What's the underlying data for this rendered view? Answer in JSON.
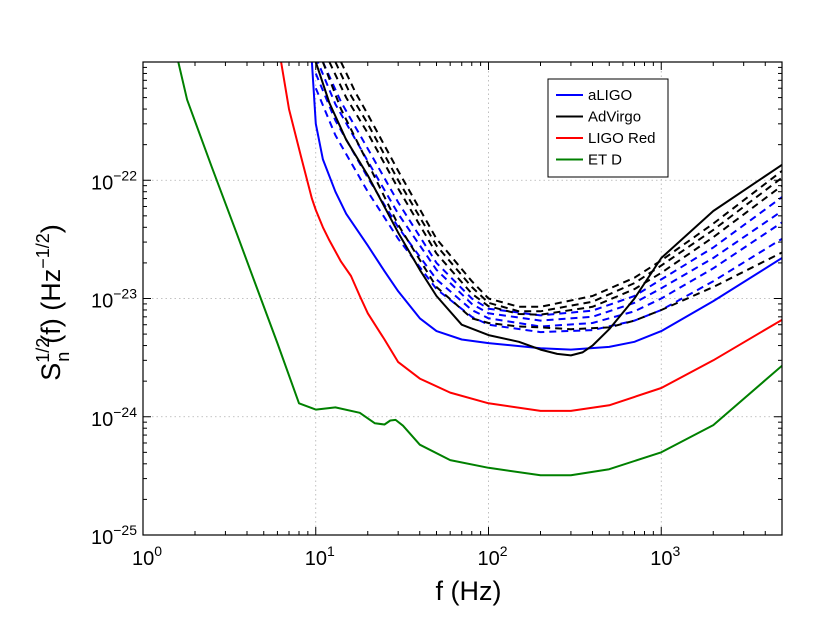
{
  "chart_data": {
    "type": "line",
    "xscale": "log",
    "yscale": "log",
    "xlim": [
      1,
      5000
    ],
    "ylim": [
      1e-25,
      1e-21
    ],
    "xlabel": "f (Hz)",
    "ylabel": "S_n^{1/2}(f) (Hz^{-1/2})",
    "ylabel_parts": {
      "base": "S",
      "sub": "n",
      "sup": "1/2",
      "mid": "(f) (Hz",
      "sup2": "−1/2",
      "end": ")"
    },
    "x_ticks": [
      {
        "base": "10",
        "exp": "0",
        "value": 1
      },
      {
        "base": "10",
        "exp": "1",
        "value": 10
      },
      {
        "base": "10",
        "exp": "2",
        "value": 100
      },
      {
        "base": "10",
        "exp": "3",
        "value": 1000
      }
    ],
    "y_ticks": [
      {
        "base": "10",
        "exp": "−25",
        "value": 1e-25
      },
      {
        "base": "10",
        "exp": "−24",
        "value": 1e-24
      },
      {
        "base": "10",
        "exp": "−23",
        "value": 1e-23
      },
      {
        "base": "10",
        "exp": "−22",
        "value": 1e-22
      }
    ],
    "grid": true,
    "legend_position": "top-right",
    "legend": [
      {
        "label": "aLIGO",
        "color": "#0000ff"
      },
      {
        "label": "AdVirgo",
        "color": "#000000"
      },
      {
        "label": "LIGO Red",
        "color": "#ff0000"
      },
      {
        "label": "ET D",
        "color": "#008000"
      }
    ],
    "series": [
      {
        "name": "ET D",
        "color": "#008000",
        "style": "solid",
        "points": [
          [
            1.6,
            1e-21
          ],
          [
            1.8,
            4.8e-22
          ],
          [
            2.5,
            1.3e-22
          ],
          [
            3.5,
            3.5e-23
          ],
          [
            4.5,
            1.3e-23
          ],
          [
            6,
            4.2e-24
          ],
          [
            8,
            1.3e-24
          ],
          [
            10,
            1.15e-24
          ],
          [
            13,
            1.2e-24
          ],
          [
            18,
            1.08e-24
          ],
          [
            22,
            8.8e-25
          ],
          [
            25,
            8.6e-25
          ],
          [
            27,
            9.3e-25
          ],
          [
            29,
            9.4e-25
          ],
          [
            32,
            8.4e-25
          ],
          [
            40,
            5.8e-25
          ],
          [
            60,
            4.3e-25
          ],
          [
            100,
            3.7e-25
          ],
          [
            200,
            3.2e-25
          ],
          [
            300,
            3.2e-25
          ],
          [
            500,
            3.6e-25
          ],
          [
            1000,
            5e-25
          ],
          [
            2000,
            8.5e-25
          ],
          [
            5000,
            2.7e-24
          ]
        ]
      },
      {
        "name": "LIGO Red",
        "color": "#ff0000",
        "style": "solid",
        "points": [
          [
            6.3,
            1e-21
          ],
          [
            7,
            4e-22
          ],
          [
            8.2,
            1.6e-22
          ],
          [
            9.5,
            7e-23
          ],
          [
            10,
            5.6e-23
          ],
          [
            11,
            4e-23
          ],
          [
            12,
            3.1e-23
          ],
          [
            14,
            2.05e-23
          ],
          [
            16,
            1.55e-23
          ],
          [
            18,
            1.05e-23
          ],
          [
            20,
            7.5e-24
          ],
          [
            25,
            4.5e-24
          ],
          [
            30,
            2.9e-24
          ],
          [
            40,
            2.1e-24
          ],
          [
            60,
            1.6e-24
          ],
          [
            100,
            1.3e-24
          ],
          [
            200,
            1.12e-24
          ],
          [
            300,
            1.12e-24
          ],
          [
            500,
            1.25e-24
          ],
          [
            1000,
            1.75e-24
          ],
          [
            2000,
            3e-24
          ],
          [
            5000,
            6.6e-24
          ]
        ]
      },
      {
        "name": "aLIGO",
        "color": "#0000ff",
        "style": "solid",
        "points": [
          [
            9.5,
            1e-21
          ],
          [
            10,
            3e-22
          ],
          [
            11,
            1.5e-22
          ],
          [
            13,
            8e-23
          ],
          [
            15,
            5.2e-23
          ],
          [
            20,
            2.8e-23
          ],
          [
            25,
            1.7e-23
          ],
          [
            30,
            1.15e-23
          ],
          [
            40,
            6.8e-24
          ],
          [
            50,
            5.3e-24
          ],
          [
            70,
            4.5e-24
          ],
          [
            100,
            4.2e-24
          ],
          [
            200,
            3.8e-24
          ],
          [
            300,
            3.7e-24
          ],
          [
            500,
            3.9e-24
          ],
          [
            700,
            4.3e-24
          ],
          [
            1000,
            5.3e-24
          ],
          [
            2000,
            9.5e-24
          ],
          [
            5000,
            2.2e-23
          ]
        ]
      },
      {
        "name": "aLIGO (dashed)",
        "color": "#0000ff",
        "style": "dashed",
        "points": [
          [
            10,
            6e-22
          ],
          [
            13,
            2.4e-22
          ],
          [
            20,
            8e-23
          ],
          [
            30,
            3.2e-23
          ],
          [
            50,
            1.2e-23
          ],
          [
            80,
            7e-24
          ],
          [
            100,
            6e-24
          ],
          [
            200,
            5.2e-24
          ],
          [
            400,
            5.4e-24
          ],
          [
            700,
            6.5e-24
          ],
          [
            1000,
            8e-24
          ],
          [
            2000,
            1.4e-23
          ],
          [
            5000,
            3.2e-23
          ]
        ]
      },
      {
        "name": "aLIGO (dashed)",
        "color": "#0000ff",
        "style": "dashed",
        "points": [
          [
            10,
            8e-22
          ],
          [
            13,
            3.2e-22
          ],
          [
            20,
            1.05e-22
          ],
          [
            30,
            4e-23
          ],
          [
            50,
            1.45e-23
          ],
          [
            80,
            8e-24
          ],
          [
            100,
            6.8e-24
          ],
          [
            200,
            5.8e-24
          ],
          [
            400,
            6.2e-24
          ],
          [
            700,
            7.8e-24
          ],
          [
            1000,
            1e-23
          ],
          [
            2000,
            1.8e-23
          ],
          [
            5000,
            4.4e-23
          ]
        ]
      },
      {
        "name": "aLIGO (dashed)",
        "color": "#0000ff",
        "style": "dashed",
        "points": [
          [
            10,
            1.1e-21
          ],
          [
            13,
            4.4e-22
          ],
          [
            20,
            1.45e-22
          ],
          [
            30,
            5.2e-23
          ],
          [
            50,
            1.75e-23
          ],
          [
            80,
            9e-24
          ],
          [
            100,
            7.5e-24
          ],
          [
            200,
            6.5e-24
          ],
          [
            400,
            7e-24
          ],
          [
            700,
            9.2e-24
          ],
          [
            1000,
            1.22e-23
          ],
          [
            2000,
            2.2e-23
          ],
          [
            5000,
            5.5e-23
          ]
        ]
      },
      {
        "name": "aLIGO (dashed)",
        "color": "#0000ff",
        "style": "dashed",
        "points": [
          [
            11,
            1e-21
          ],
          [
            14,
            4.6e-22
          ],
          [
            20,
            1.85e-22
          ],
          [
            30,
            6.5e-23
          ],
          [
            50,
            2e-23
          ],
          [
            80,
            1e-23
          ],
          [
            100,
            8.2e-24
          ],
          [
            200,
            7.2e-24
          ],
          [
            400,
            7.9e-24
          ],
          [
            700,
            1.05e-23
          ],
          [
            1000,
            1.45e-23
          ],
          [
            2000,
            2.7e-23
          ],
          [
            5000,
            7.2e-23
          ]
        ]
      },
      {
        "name": "AdVirgo",
        "color": "#000000",
        "style": "solid",
        "points": [
          [
            10,
            1e-21
          ],
          [
            12,
            4.5e-22
          ],
          [
            15,
            2.2e-22
          ],
          [
            20,
            1.1e-22
          ],
          [
            30,
            3.6e-23
          ],
          [
            40,
            1.75e-23
          ],
          [
            50,
            1.05e-23
          ],
          [
            70,
            6e-24
          ],
          [
            100,
            4.9e-24
          ],
          [
            150,
            4.3e-24
          ],
          [
            200,
            3.7e-24
          ],
          [
            250,
            3.4e-24
          ],
          [
            300,
            3.3e-24
          ],
          [
            350,
            3.5e-24
          ],
          [
            400,
            4e-24
          ],
          [
            500,
            5.5e-24
          ],
          [
            700,
            1e-23
          ],
          [
            1000,
            2.2e-23
          ],
          [
            2000,
            5.5e-23
          ],
          [
            5000,
            1.35e-22
          ]
        ]
      },
      {
        "name": "AdVirgo (dashed)",
        "color": "#000000",
        "style": "dashed",
        "points": [
          [
            12,
            1e-21
          ],
          [
            15,
            5e-22
          ],
          [
            20,
            2.5e-22
          ],
          [
            30,
            8.5e-23
          ],
          [
            50,
            2.4e-23
          ],
          [
            80,
            1.1e-23
          ],
          [
            100,
            8.6e-24
          ],
          [
            150,
            7.4e-24
          ],
          [
            200,
            7.3e-24
          ],
          [
            400,
            8.5e-24
          ],
          [
            700,
            1.2e-23
          ],
          [
            1000,
            1.65e-23
          ],
          [
            2000,
            3.3e-23
          ],
          [
            5000,
            9e-23
          ]
        ]
      },
      {
        "name": "AdVirgo (dashed)",
        "color": "#000000",
        "style": "dashed",
        "points": [
          [
            13,
            1e-21
          ],
          [
            16,
            5.2e-22
          ],
          [
            20,
            3e-22
          ],
          [
            30,
            1e-22
          ],
          [
            50,
            2.8e-23
          ],
          [
            80,
            1.25e-23
          ],
          [
            100,
            9.2e-24
          ],
          [
            150,
            7.8e-24
          ],
          [
            200,
            7.8e-24
          ],
          [
            400,
            9.4e-24
          ],
          [
            700,
            1.35e-23
          ],
          [
            1000,
            1.9e-23
          ],
          [
            2000,
            3.8e-23
          ],
          [
            5000,
            1.05e-22
          ]
        ]
      },
      {
        "name": "AdVirgo (dashed)",
        "color": "#000000",
        "style": "dashed",
        "points": [
          [
            14,
            1e-21
          ],
          [
            17,
            5.5e-22
          ],
          [
            20,
            3.6e-22
          ],
          [
            30,
            1.2e-22
          ],
          [
            50,
            3.2e-23
          ],
          [
            80,
            1.4e-23
          ],
          [
            100,
            1e-23
          ],
          [
            150,
            8.5e-24
          ],
          [
            200,
            8.5e-24
          ],
          [
            400,
            1.05e-23
          ],
          [
            700,
            1.5e-23
          ],
          [
            1000,
            2.1e-23
          ],
          [
            2000,
            4.3e-23
          ],
          [
            5000,
            1.2e-22
          ]
        ]
      },
      {
        "name": "AdVirgo (dashed)",
        "color": "#000000",
        "style": "dashed",
        "points": [
          [
            11,
            1e-21
          ],
          [
            14,
            4e-22
          ],
          [
            20,
            1.4e-22
          ],
          [
            30,
            4.2e-23
          ],
          [
            50,
            1.25e-23
          ],
          [
            80,
            6.8e-24
          ],
          [
            100,
            6.2e-24
          ],
          [
            150,
            5.8e-24
          ],
          [
            200,
            5.7e-24
          ],
          [
            300,
            5.5e-24
          ],
          [
            500,
            5.7e-24
          ],
          [
            700,
            6.5e-24
          ],
          [
            1000,
            8e-24
          ],
          [
            2000,
            1.25e-23
          ],
          [
            5000,
            2.45e-23
          ]
        ]
      }
    ]
  }
}
